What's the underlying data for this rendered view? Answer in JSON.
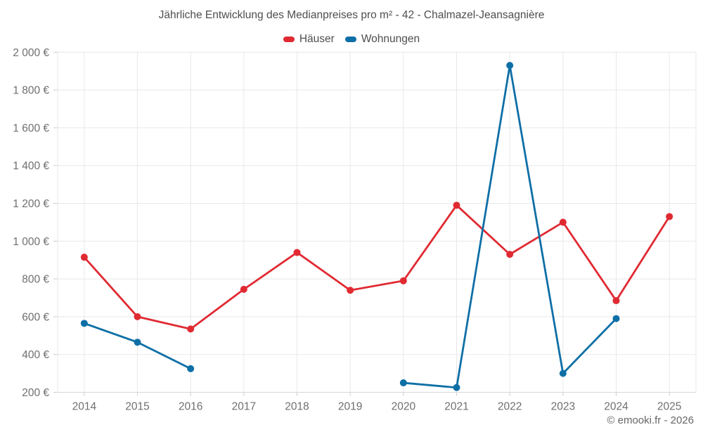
{
  "page": {
    "footer": "© emooki.fr - 2026"
  },
  "chart_data": {
    "type": "line",
    "title": "Jährliche Entwicklung des Medianpreises pro m² - 42 - Chalmazel-Jeansagnière",
    "categories": [
      "2014",
      "2015",
      "2016",
      "2017",
      "2018",
      "2019",
      "2020",
      "2021",
      "2022",
      "2023",
      "2024",
      "2025"
    ],
    "series": [
      {
        "name": "Häuser",
        "color": "#e02a32",
        "values": [
          915,
          600,
          535,
          745,
          940,
          740,
          790,
          1190,
          930,
          1100,
          685,
          1130
        ]
      },
      {
        "name": "Wohnungen",
        "color": "#0e6fa6",
        "values": [
          565,
          465,
          325,
          null,
          null,
          null,
          250,
          225,
          1930,
          300,
          590,
          null
        ]
      }
    ],
    "ylim": [
      200,
      2000
    ],
    "ytick_step": 200,
    "ytick_labels": [
      "200 €",
      "400 €",
      "600 €",
      "800 €",
      "1 000 €",
      "1 200 €",
      "1 400 €",
      "1 600 €",
      "1 800 €",
      "2 000 €"
    ],
    "grid": true,
    "legend_position": "top",
    "xlabel": "",
    "ylabel": ""
  },
  "theme": {
    "grid_color": "#e8e8e8",
    "axis_line_color": "#d8d8d8",
    "tick_color": "#cccccc",
    "tick_label_color": "#6f6f6f",
    "title_color": "#4e4e4e"
  }
}
